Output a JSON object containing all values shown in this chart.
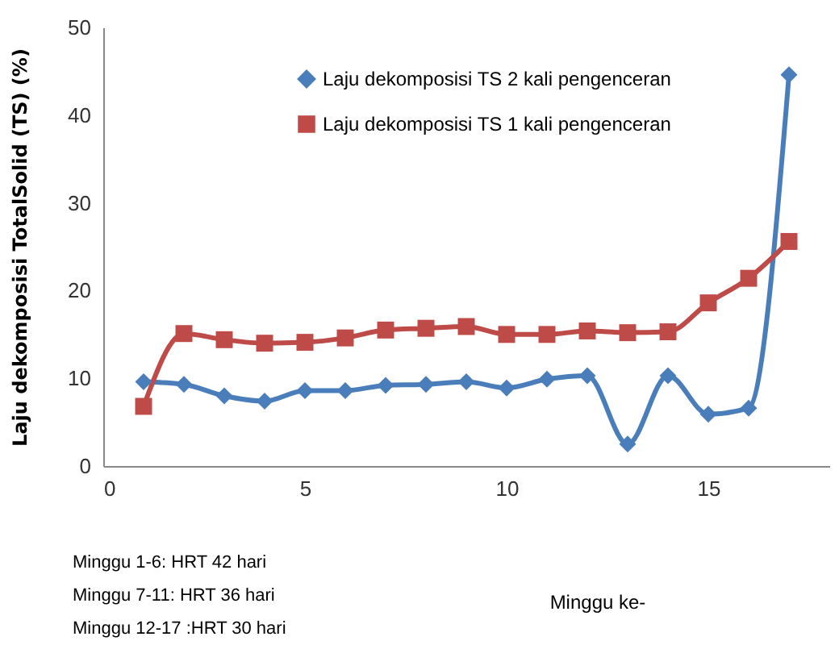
{
  "chart_data": {
    "type": "line",
    "x": [
      1,
      2,
      3,
      4,
      5,
      6,
      7,
      8,
      9,
      10,
      11,
      12,
      13,
      14,
      15,
      16,
      17
    ],
    "series": [
      {
        "name": "Laju dekomposisi TS 2 kali pengenceran",
        "color": "#4a7ebb",
        "marker": "diamond",
        "values": [
          9.6,
          9.3,
          8.0,
          7.4,
          8.6,
          8.6,
          9.2,
          9.3,
          9.6,
          8.9,
          9.9,
          10.3,
          2.5,
          10.3,
          5.9,
          6.6,
          44.6
        ]
      },
      {
        "name": "Laju dekomposisi TS 1 kali pengenceran",
        "color": "#be4b48",
        "marker": "square",
        "values": [
          6.8,
          15.1,
          14.4,
          14.0,
          14.1,
          14.6,
          15.5,
          15.7,
          15.9,
          15.0,
          15.0,
          15.4,
          15.2,
          15.3,
          18.6,
          21.4,
          25.6
        ]
      }
    ],
    "xlabel": "Minggu ke-",
    "ylabel": "Laju dekomposisi TotalSolid (TS) (%)",
    "xlim": [
      0,
      18
    ],
    "xticks": [
      0,
      5,
      10,
      15
    ],
    "ylim": [
      0,
      50
    ],
    "yticks": [
      0,
      10,
      20,
      30,
      40,
      50
    ],
    "legend": "top",
    "grid": false,
    "line_style": "solid",
    "annotations": [
      "Minggu 1-6: HRT 42 hari",
      "Minggu 7-11: HRT  36 hari",
      "Minggu 12-17 :HRT 30 hari"
    ]
  }
}
